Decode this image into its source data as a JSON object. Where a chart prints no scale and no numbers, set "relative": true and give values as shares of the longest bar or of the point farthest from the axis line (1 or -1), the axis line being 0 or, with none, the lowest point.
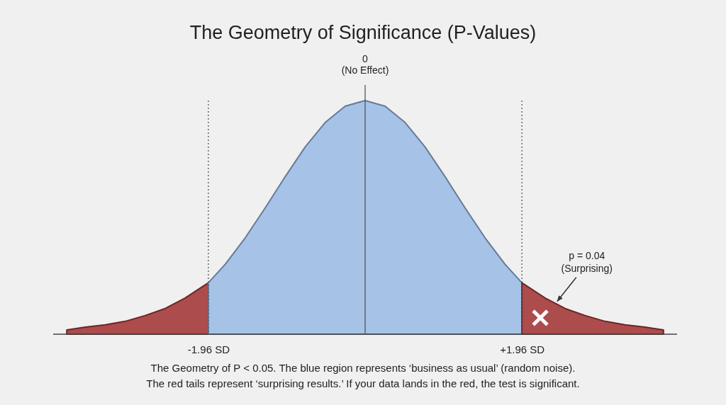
{
  "chart_data": {
    "type": "area",
    "title": "The Geometry of Significance (P-Values)",
    "relative": true,
    "xlim": [
      -3.9,
      3.9
    ],
    "xticks": [
      {
        "value": -1.96,
        "label": "-1.96 SD"
      },
      {
        "value": 1.96,
        "label": "+1.96 SD"
      }
    ],
    "series": [
      {
        "color": "#a53a3a",
        "x": [
          -3.73,
          -3.5,
          -3.25,
          -3,
          -2.75,
          -2.5,
          -2.25,
          -1.96
        ],
        "values": [
          0.018,
          0.03,
          0.04,
          0.055,
          0.08,
          0.11,
          0.155,
          0.22
        ]
      },
      {
        "color": "#9dbde6",
        "x": [
          -1.96,
          -1.75,
          -1.5,
          -1.25,
          -1,
          -0.75,
          -0.5,
          -0.25,
          0,
          0.25,
          0.5,
          0.75,
          1,
          1.25,
          1.5,
          1.75,
          1.96
        ],
        "values": [
          0.22,
          0.299,
          0.412,
          0.54,
          0.674,
          0.801,
          0.906,
          0.976,
          1,
          0.976,
          0.906,
          0.801,
          0.674,
          0.54,
          0.412,
          0.299,
          0.22
        ]
      },
      {
        "color": "#a53a3a",
        "x": [
          1.96,
          2.25,
          2.5,
          2.75,
          3,
          3.25,
          3.5,
          3.73
        ],
        "values": [
          0.22,
          0.155,
          0.11,
          0.08,
          0.055,
          0.04,
          0.03,
          0.018
        ]
      },
      {
        "type": "scatter",
        "marker": "cross",
        "color": "#ffffff",
        "x": [
          2.19
        ],
        "values": [
          0.07
        ]
      }
    ],
    "ref_lines": [
      {
        "axis": "x",
        "value": -1.96,
        "line_style": "dotted",
        "color": "#555555"
      },
      {
        "axis": "x",
        "value": 0,
        "label": "0\n(No Effect)",
        "line_style": "solid",
        "color": "#555555"
      },
      {
        "axis": "x",
        "value": 1.96,
        "line_style": "dotted",
        "color": "#555555"
      }
    ],
    "annotations": [
      {
        "text": "p = 0.04\n(Surprising)",
        "x": 2.4,
        "y": 0.14
      },
      "The Geometry of P < 0.05. The blue region represents ‘business as usual’ (random noise).\nThe red tails represent ‘surprising results.’ If your data lands in the red, the test is significant."
    ]
  }
}
